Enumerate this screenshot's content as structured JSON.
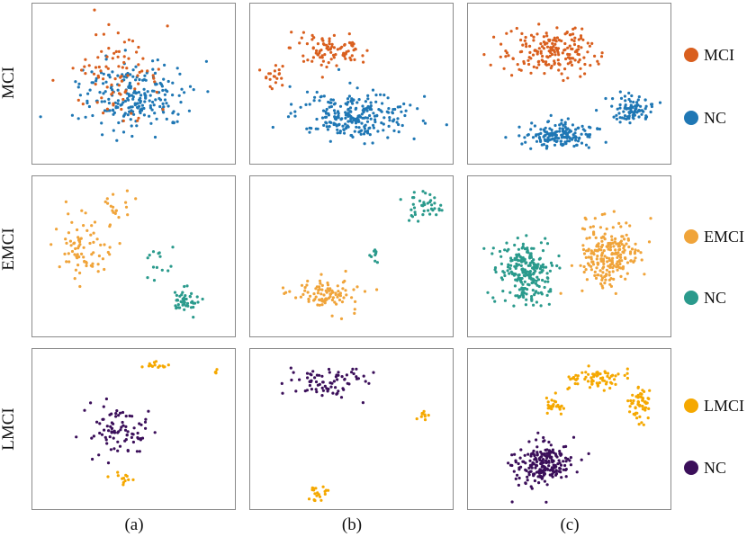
{
  "chart_data": {
    "type": "scatter",
    "columns": [
      "(a)",
      "(b)",
      "(c)"
    ],
    "rows": [
      {
        "label": "MCI",
        "classes": [
          {
            "name": "MCI",
            "color": "#d95f1e"
          },
          {
            "name": "NC",
            "color": "#1f77b4"
          }
        ]
      },
      {
        "label": "EMCI",
        "classes": [
          {
            "name": "EMCI",
            "color": "#f0a43a"
          },
          {
            "name": "NC",
            "color": "#2a9a8c"
          }
        ]
      },
      {
        "label": "LMCI",
        "classes": [
          {
            "name": "LMCI",
            "color": "#f5a800"
          },
          {
            "name": "NC",
            "color": "#3b0f5a"
          }
        ]
      }
    ],
    "panels": [
      {
        "row": 0,
        "col": 0,
        "clusters": [
          {
            "cls": 1,
            "cx": 0.5,
            "cy": 0.58,
            "sx": 0.24,
            "sy": 0.2,
            "n": 230
          },
          {
            "cls": 0,
            "cx": 0.42,
            "cy": 0.45,
            "sx": 0.2,
            "sy": 0.22,
            "n": 85
          }
        ]
      },
      {
        "row": 0,
        "col": 1,
        "clusters": [
          {
            "cls": 0,
            "cx": 0.4,
            "cy": 0.28,
            "sx": 0.18,
            "sy": 0.1,
            "n": 90
          },
          {
            "cls": 0,
            "cx": 0.12,
            "cy": 0.45,
            "sx": 0.05,
            "sy": 0.07,
            "n": 20
          },
          {
            "cls": 1,
            "cx": 0.52,
            "cy": 0.7,
            "sx": 0.26,
            "sy": 0.13,
            "n": 250
          }
        ]
      },
      {
        "row": 0,
        "col": 2,
        "clusters": [
          {
            "cls": 0,
            "cx": 0.4,
            "cy": 0.3,
            "sx": 0.2,
            "sy": 0.14,
            "n": 190
          },
          {
            "cls": 1,
            "cx": 0.45,
            "cy": 0.82,
            "sx": 0.16,
            "sy": 0.07,
            "n": 160
          },
          {
            "cls": 1,
            "cx": 0.82,
            "cy": 0.66,
            "sx": 0.09,
            "sy": 0.07,
            "n": 90
          }
        ]
      },
      {
        "row": 1,
        "col": 0,
        "clusters": [
          {
            "cls": 0,
            "cx": 0.25,
            "cy": 0.45,
            "sx": 0.12,
            "sy": 0.18,
            "n": 75
          },
          {
            "cls": 0,
            "cx": 0.42,
            "cy": 0.18,
            "sx": 0.06,
            "sy": 0.1,
            "n": 18
          },
          {
            "cls": 1,
            "cx": 0.75,
            "cy": 0.78,
            "sx": 0.07,
            "sy": 0.07,
            "n": 45
          },
          {
            "cls": 1,
            "cx": 0.62,
            "cy": 0.5,
            "sx": 0.08,
            "sy": 0.1,
            "n": 14
          }
        ]
      },
      {
        "row": 1,
        "col": 1,
        "clusters": [
          {
            "cls": 0,
            "cx": 0.38,
            "cy": 0.73,
            "sx": 0.15,
            "sy": 0.1,
            "n": 95
          },
          {
            "cls": 1,
            "cx": 0.85,
            "cy": 0.18,
            "sx": 0.08,
            "sy": 0.07,
            "n": 40
          },
          {
            "cls": 1,
            "cx": 0.62,
            "cy": 0.5,
            "sx": 0.04,
            "sy": 0.05,
            "n": 10
          }
        ]
      },
      {
        "row": 1,
        "col": 2,
        "clusters": [
          {
            "cls": 1,
            "cx": 0.28,
            "cy": 0.6,
            "sx": 0.11,
            "sy": 0.18,
            "n": 230
          },
          {
            "cls": 0,
            "cx": 0.7,
            "cy": 0.5,
            "sx": 0.13,
            "sy": 0.2,
            "n": 230
          }
        ]
      },
      {
        "row": 2,
        "col": 0,
        "clusters": [
          {
            "cls": 1,
            "cx": 0.42,
            "cy": 0.52,
            "sx": 0.16,
            "sy": 0.14,
            "n": 85
          },
          {
            "cls": 0,
            "cx": 0.6,
            "cy": 0.1,
            "sx": 0.05,
            "sy": 0.03,
            "n": 14
          },
          {
            "cls": 0,
            "cx": 0.45,
            "cy": 0.82,
            "sx": 0.05,
            "sy": 0.03,
            "n": 12
          },
          {
            "cls": 0,
            "cx": 0.9,
            "cy": 0.14,
            "sx": 0.02,
            "sy": 0.01,
            "n": 4
          }
        ]
      },
      {
        "row": 2,
        "col": 1,
        "clusters": [
          {
            "cls": 1,
            "cx": 0.4,
            "cy": 0.2,
            "sx": 0.18,
            "sy": 0.09,
            "n": 75
          },
          {
            "cls": 0,
            "cx": 0.85,
            "cy": 0.42,
            "sx": 0.03,
            "sy": 0.03,
            "n": 10
          },
          {
            "cls": 0,
            "cx": 0.33,
            "cy": 0.9,
            "sx": 0.04,
            "sy": 0.05,
            "n": 20
          }
        ]
      },
      {
        "row": 2,
        "col": 2,
        "clusters": [
          {
            "cls": 1,
            "cx": 0.36,
            "cy": 0.72,
            "sx": 0.13,
            "sy": 0.12,
            "n": 210
          },
          {
            "cls": 0,
            "cx": 0.63,
            "cy": 0.18,
            "sx": 0.12,
            "sy": 0.06,
            "n": 70
          },
          {
            "cls": 0,
            "cx": 0.85,
            "cy": 0.35,
            "sx": 0.05,
            "sy": 0.1,
            "n": 55
          },
          {
            "cls": 0,
            "cx": 0.43,
            "cy": 0.36,
            "sx": 0.05,
            "sy": 0.05,
            "n": 25
          }
        ]
      }
    ]
  }
}
